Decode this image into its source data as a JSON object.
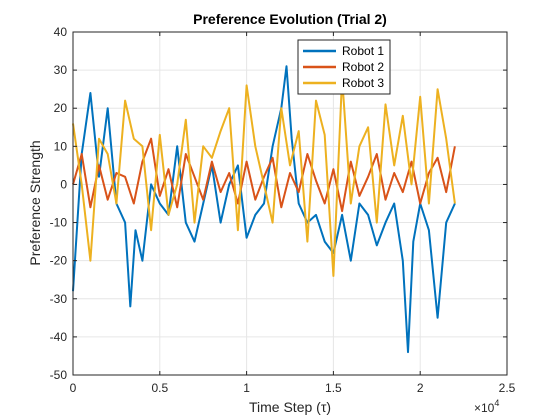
{
  "chart_data": {
    "type": "line",
    "title": "Preference Evolution (Trial 2)",
    "xlabel": "Time Step (τ)",
    "ylabel": "Preference Strength",
    "xlim": [
      0,
      25000
    ],
    "ylim": [
      -50,
      40
    ],
    "x_ticks": [
      0,
      5000,
      10000,
      15000,
      20000,
      25000
    ],
    "x_tick_labels": [
      "0",
      "0.5",
      "1",
      "1.5",
      "2",
      "2.5"
    ],
    "x_exponent_label": "×10",
    "x_exponent_power": "4",
    "y_ticks": [
      -50,
      -40,
      -30,
      -20,
      -10,
      0,
      10,
      20,
      30,
      40
    ],
    "y_tick_labels": [
      "-50",
      "-40",
      "-30",
      "-20",
      "-10",
      "0",
      "10",
      "20",
      "30",
      "40"
    ],
    "grid": true,
    "legend_position": "top-right",
    "series": [
      {
        "name": "Robot 1",
        "color": "#0072BD",
        "x": [
          0,
          500,
          1000,
          1500,
          2000,
          2500,
          3000,
          3300,
          3600,
          4000,
          4500,
          5000,
          5500,
          6000,
          6500,
          7000,
          7500,
          8000,
          8500,
          9000,
          9500,
          10000,
          10500,
          11000,
          11500,
          12000,
          12300,
          12600,
          13000,
          13500,
          14000,
          14500,
          15000,
          15500,
          16000,
          16500,
          17000,
          17500,
          18000,
          18500,
          19000,
          19300,
          19600,
          20000,
          20500,
          21000,
          21500,
          22000
        ],
        "y": [
          -28,
          8,
          24,
          2,
          20,
          -5,
          -10,
          -32,
          -12,
          -20,
          0,
          -5,
          -8,
          10,
          -10,
          -15,
          -5,
          5,
          -10,
          0,
          5,
          -14,
          -8,
          -5,
          10,
          20,
          31,
          12,
          -5,
          -10,
          -8,
          -15,
          -18,
          -8,
          -20,
          -5,
          -8,
          -16,
          -10,
          -5,
          -20,
          -44,
          -15,
          -5,
          -12,
          -35,
          -10,
          -5
        ]
      },
      {
        "name": "Robot 2",
        "color": "#D95319",
        "x": [
          0,
          500,
          1000,
          1500,
          2000,
          2500,
          3000,
          3500,
          4000,
          4500,
          5000,
          5500,
          6000,
          6500,
          7000,
          7500,
          8000,
          8500,
          9000,
          9500,
          10000,
          10500,
          11000,
          11500,
          12000,
          12500,
          13000,
          13500,
          14000,
          14500,
          15000,
          15500,
          16000,
          16500,
          17000,
          17500,
          18000,
          18500,
          19000,
          19500,
          20000,
          20500,
          21000,
          21500,
          22000
        ],
        "y": [
          0,
          8,
          -6,
          5,
          -4,
          3,
          2,
          -5,
          6,
          12,
          -3,
          4,
          -6,
          8,
          2,
          -4,
          6,
          -2,
          3,
          -5,
          6,
          -4,
          2,
          7,
          -6,
          3,
          -2,
          8,
          1,
          -5,
          4,
          -7,
          6,
          -3,
          2,
          8,
          -4,
          3,
          -2,
          6,
          -5,
          3,
          7,
          -2,
          10
        ]
      },
      {
        "name": "Robot 3",
        "color": "#EDB120",
        "x": [
          0,
          500,
          1000,
          1500,
          2000,
          2500,
          3000,
          3500,
          4000,
          4500,
          5000,
          5500,
          6000,
          6500,
          7000,
          7500,
          8000,
          8500,
          9000,
          9500,
          10000,
          10500,
          11000,
          11500,
          12000,
          12500,
          13000,
          13500,
          14000,
          14500,
          15000,
          15500,
          16000,
          16500,
          17000,
          17500,
          18000,
          18500,
          19000,
          19500,
          20000,
          20500,
          21000,
          21500,
          22000
        ],
        "y": [
          16,
          0,
          -20,
          12,
          8,
          -5,
          22,
          12,
          10,
          -12,
          13,
          -8,
          0,
          17,
          -10,
          10,
          7,
          14,
          20,
          -12,
          26,
          10,
          0,
          -10,
          20,
          5,
          14,
          -15,
          22,
          13,
          -24,
          28,
          -5,
          10,
          15,
          -10,
          21,
          5,
          18,
          0,
          23,
          -5,
          25,
          12,
          -5
        ]
      }
    ]
  }
}
